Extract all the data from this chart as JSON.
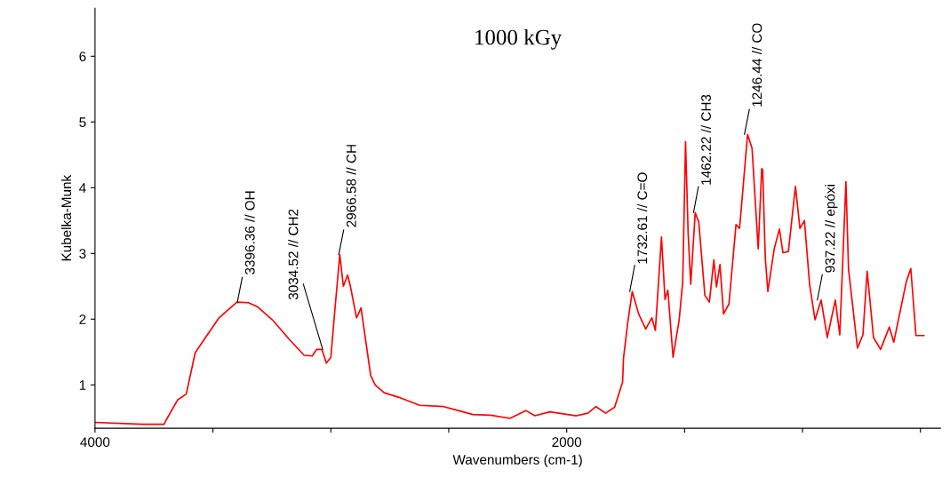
{
  "chart_data": {
    "type": "line",
    "title": "1000 kGy",
    "xlabel": "Wavenumbers (cm-1)",
    "ylabel": "Kubelka-Munk",
    "xlim": [
      4000,
      415
    ],
    "ylim": [
      0.34,
      6.73
    ],
    "xticks": [
      4000,
      {
        "value": 3500,
        "label": null
      },
      {
        "value": 3000,
        "label": null
      },
      {
        "value": 2500,
        "label": null
      },
      2000,
      {
        "value": 1500,
        "label": null
      },
      {
        "value": 1000,
        "label": null
      },
      {
        "value": 500,
        "label": null
      }
    ],
    "yticks": [
      1,
      2,
      3,
      4,
      5,
      6
    ],
    "grid": false,
    "legend": false,
    "marker": "none",
    "line_style": "solid",
    "series": [
      {
        "color": "#ff0000",
        "x": [
          4000,
          3800,
          3707,
          3699,
          3650,
          3613,
          3575,
          3545,
          3474,
          3398,
          3350,
          3312,
          3248,
          3173,
          3113,
          3079,
          3060,
          3038,
          3019,
          3000,
          2981,
          2962,
          2947,
          2929,
          2917,
          2891,
          2872,
          2850,
          2831,
          2812,
          2774,
          2711,
          2624,
          2523,
          2398,
          2323,
          2241,
          2173,
          2135,
          2071,
          1959,
          1910,
          1876,
          1835,
          1797,
          1763,
          1759,
          1741,
          1722,
          1695,
          1665,
          1639,
          1624,
          1598,
          1583,
          1571,
          1549,
          1523,
          1508,
          1496,
          1485,
          1474,
          1455,
          1440,
          1414,
          1395,
          1376,
          1365,
          1350,
          1335,
          1312,
          1282,
          1267,
          1233,
          1214,
          1188,
          1173,
          1169,
          1158,
          1147,
          1120,
          1098,
          1083,
          1060,
          1030,
          1011,
          992,
          970,
          947,
          921,
          895,
          861,
          842,
          816,
          805,
          767,
          744,
          726,
          699,
          669,
          632,
          613,
          560,
          541,
          519,
          485
        ],
        "values": [
          0.43,
          0.4,
          0.4,
          0.46,
          0.77,
          0.86,
          1.49,
          1.65,
          2.02,
          2.26,
          2.25,
          2.19,
          1.99,
          1.68,
          1.45,
          1.44,
          1.54,
          1.54,
          1.33,
          1.42,
          2.22,
          2.98,
          2.5,
          2.67,
          2.5,
          2.02,
          2.17,
          1.62,
          1.14,
          1.0,
          0.88,
          0.81,
          0.69,
          0.67,
          0.55,
          0.54,
          0.49,
          0.61,
          0.53,
          0.59,
          0.53,
          0.57,
          0.67,
          0.57,
          0.66,
          1.04,
          1.41,
          1.95,
          2.42,
          2.08,
          1.85,
          2.02,
          1.83,
          3.25,
          2.3,
          2.44,
          1.42,
          1.99,
          2.57,
          4.7,
          3.3,
          2.53,
          3.62,
          3.48,
          2.36,
          2.26,
          2.9,
          2.49,
          2.83,
          2.08,
          2.23,
          3.44,
          3.38,
          4.81,
          4.6,
          3.07,
          4.29,
          4.27,
          2.94,
          2.42,
          3.07,
          3.37,
          3.01,
          3.03,
          4.02,
          3.38,
          3.5,
          2.53,
          1.99,
          2.29,
          1.72,
          2.29,
          1.76,
          4.09,
          2.76,
          1.56,
          1.76,
          2.73,
          1.72,
          1.54,
          1.88,
          1.65,
          2.57,
          2.77,
          1.75,
          1.75
        ]
      }
    ],
    "annotations": [
      {
        "text": "3396.36 // OH",
        "x": 3396.36,
        "y": 2.26
      },
      {
        "text": "3034.52 // CH2",
        "x": 3034.52,
        "y": 1.54
      },
      {
        "text": "2966.58 // CH",
        "x": 2966.58,
        "y": 2.98
      },
      {
        "text": "1732.61 // C=O",
        "x": 1732.61,
        "y": 2.42
      },
      {
        "text": "1462.22 // CH3",
        "x": 1462.22,
        "y": 3.62
      },
      {
        "text": "1246.44 // CO",
        "x": 1246.44,
        "y": 4.81
      },
      {
        "text": "937.22 // epóxi",
        "x": 937.22,
        "y": 2.29
      }
    ]
  }
}
